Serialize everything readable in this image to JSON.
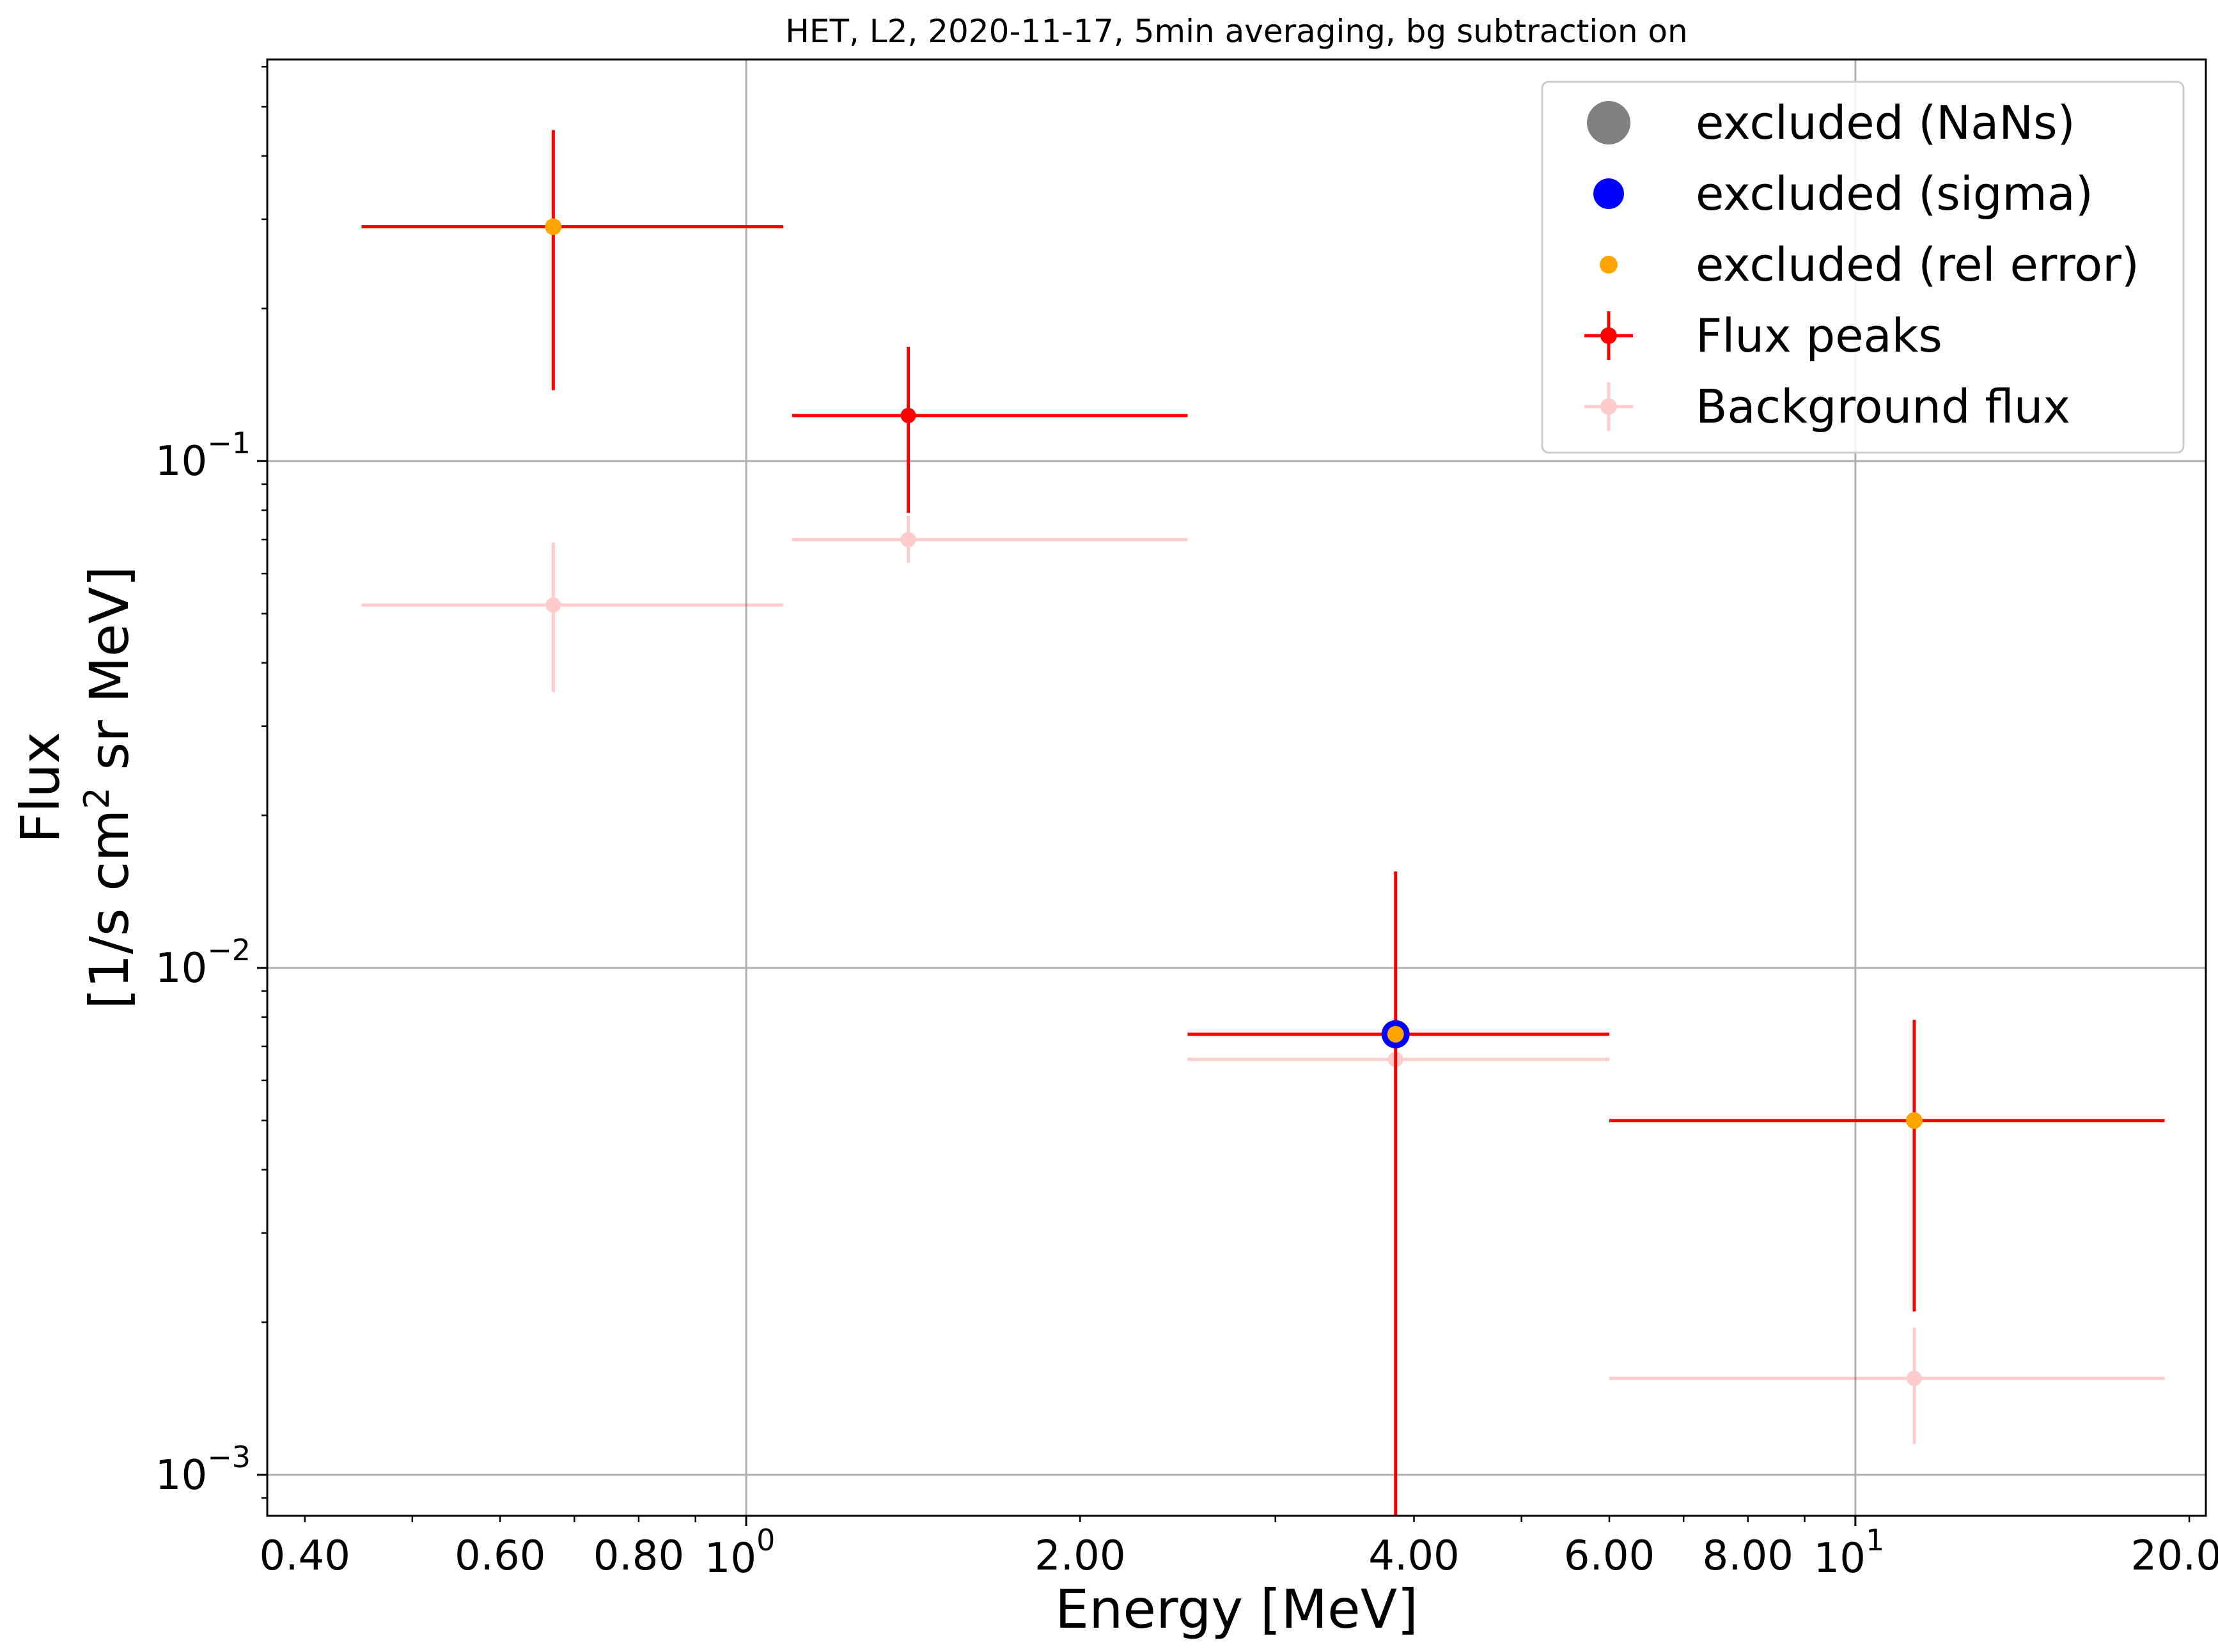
{
  "chart_data": {
    "type": "scatter",
    "title": "HET, L2, 2020-11-17, 5min averaging, bg subtraction on",
    "xlabel": "Energy [MeV]",
    "ylabel_line1": "Flux",
    "ylabel_line2_prefix": "[1/s cm",
    "ylabel_line2_sup": "2",
    "ylabel_line2_suffix": " sr MeV]",
    "x_scale": "log",
    "y_scale": "log",
    "xlim": [
      0.37,
      20.7
    ],
    "ylim": [
      0.00083,
      0.62
    ],
    "grid": true,
    "legend_position": "top-right",
    "x_major_ticks": [
      {
        "value": 1,
        "base": "10",
        "exp": "0"
      },
      {
        "value": 10,
        "base": "10",
        "exp": "1"
      }
    ],
    "x_minor_ticks": [
      {
        "value": 0.4,
        "label": "0.40"
      },
      {
        "value": 0.6,
        "label": "0.60"
      },
      {
        "value": 0.8,
        "label": "0.80"
      },
      {
        "value": 2,
        "label": "2.00"
      },
      {
        "value": 4,
        "label": "4.00"
      },
      {
        "value": 6,
        "label": "6.00"
      },
      {
        "value": 8,
        "label": "8.00"
      },
      {
        "value": 20,
        "label": "20.00"
      }
    ],
    "x_unlabeled_minor_ticks": [
      0.5,
      0.7,
      0.9,
      3,
      5,
      7,
      9
    ],
    "y_major_ticks": [
      {
        "value": 0.1,
        "base": "10",
        "exp": "−1"
      },
      {
        "value": 0.01,
        "base": "10",
        "exp": "−2"
      },
      {
        "value": 0.001,
        "base": "10",
        "exp": "−3"
      }
    ],
    "series": [
      {
        "name": "Background flux",
        "color": "#ffb3b3",
        "points": [
          {
            "x": 0.67,
            "y": 0.052,
            "xmin": 0.45,
            "xmax": 1.08,
            "ymin": 0.035,
            "ymax": 0.069
          },
          {
            "x": 1.4,
            "y": 0.07,
            "xmin": 1.1,
            "xmax": 2.5,
            "ymin": 0.063,
            "ymax": 0.078
          },
          {
            "x": 3.85,
            "y": 0.0066,
            "xmin": 2.5,
            "xmax": 6.0,
            "ymin": 0.0058,
            "ymax": 0.0074
          },
          {
            "x": 11.3,
            "y": 0.00155,
            "xmin": 6.0,
            "xmax": 19.0,
            "ymin": 0.00115,
            "ymax": 0.00195
          }
        ]
      },
      {
        "name": "Flux peaks",
        "color": "#ff0000",
        "points": [
          {
            "x": 0.67,
            "y": 0.29,
            "xmin": 0.45,
            "xmax": 1.08,
            "ymin": 0.138,
            "ymax": 0.45
          },
          {
            "x": 1.4,
            "y": 0.123,
            "xmin": 1.1,
            "xmax": 2.5,
            "ymin": 0.079,
            "ymax": 0.168
          },
          {
            "x": 3.85,
            "y": 0.0074,
            "xmin": 2.5,
            "xmax": 6.0,
            "ymin": 0.0008,
            "ymax": 0.0155
          },
          {
            "x": 11.3,
            "y": 0.005,
            "xmin": 6.0,
            "xmax": 19.0,
            "ymin": 0.0021,
            "ymax": 0.0079
          }
        ]
      },
      {
        "name": "excluded (sigma)",
        "color": "#0000ff",
        "points": [
          {
            "x": 3.85,
            "y": 0.0074
          }
        ]
      },
      {
        "name": "excluded (rel error)",
        "color": "#ffa500",
        "points": [
          {
            "x": 0.67,
            "y": 0.29
          },
          {
            "x": 3.85,
            "y": 0.0074
          },
          {
            "x": 11.3,
            "y": 0.005
          }
        ]
      },
      {
        "name": "excluded (NaNs)",
        "color": "#808080",
        "points": []
      }
    ],
    "legend": [
      {
        "label": "excluded (NaNs)",
        "marker": "big-circle",
        "color": "#808080"
      },
      {
        "label": "excluded (sigma)",
        "marker": "circle",
        "color": "#0000ff"
      },
      {
        "label": "excluded (rel error)",
        "marker": "small-circle",
        "color": "#ffa500"
      },
      {
        "label": "Flux peaks",
        "marker": "errorbar",
        "color": "#ff0000"
      },
      {
        "label": "Background flux",
        "marker": "errorbar-light",
        "color": "#ffb3b3"
      }
    ]
  }
}
